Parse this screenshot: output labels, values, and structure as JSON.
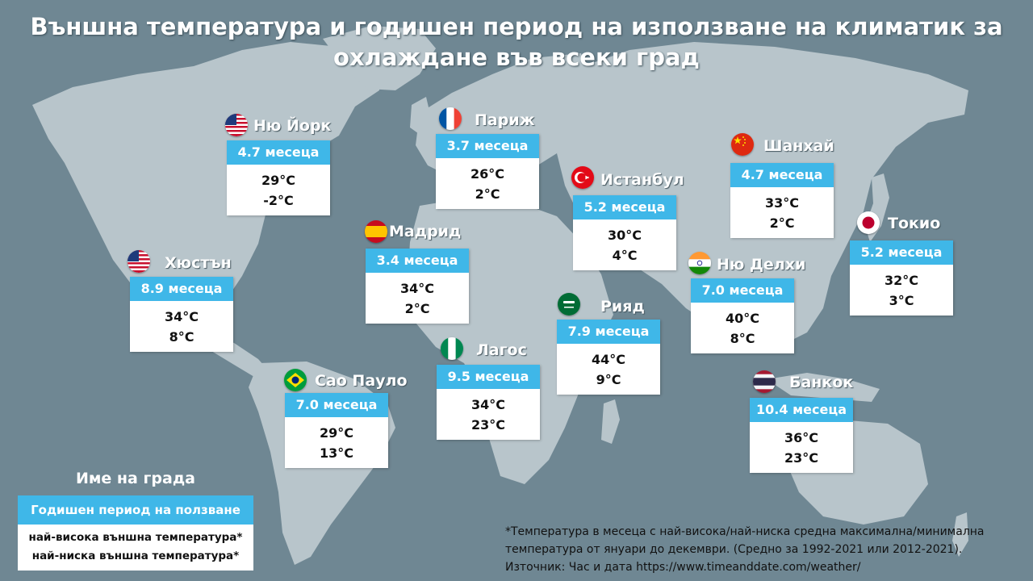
{
  "title_line1": "Външна температура и годишен период на използване на климатик за",
  "title_line2": "охлаждане във всеки град",
  "colors": {
    "background": "#6f8793",
    "land": "#b8c5cb",
    "accent": "#3fb7e8",
    "card": "#ffffff"
  },
  "cities": [
    {
      "name": "Ню Йорк",
      "period": "4.7 месеца",
      "high": "29°C",
      "low": "-2°C",
      "flag": "us"
    },
    {
      "name": "Париж",
      "period": "3.7 месеца",
      "high": "26°C",
      "low": "2°C",
      "flag": "fr"
    },
    {
      "name": "Шанхай",
      "period": "4.7 месеца",
      "high": "33°C",
      "low": "2°C",
      "flag": "cn"
    },
    {
      "name": "Истанбул",
      "period": "5.2 месеца",
      "high": "30°C",
      "low": "4°C",
      "flag": "tr"
    },
    {
      "name": "Токио",
      "period": "5.2 месеца",
      "high": "32°C",
      "low": "3°C",
      "flag": "jp"
    },
    {
      "name": "Мадрид",
      "period": "3.4 месеца",
      "high": "34°C",
      "low": "2°C",
      "flag": "es"
    },
    {
      "name": "Хюстън",
      "period": "8.9 месеца",
      "high": "34°C",
      "low": "8°C",
      "flag": "us"
    },
    {
      "name": "Ню Делхи",
      "period": "7.0 месеца",
      "high": "40°C",
      "low": "8°C",
      "flag": "in"
    },
    {
      "name": "Рияд",
      "period": "7.9 месеца",
      "high": "44°C",
      "low": "9°C",
      "flag": "sa"
    },
    {
      "name": "Лагос",
      "period": "9.5 месеца",
      "high": "34°C",
      "low": "23°C",
      "flag": "ng"
    },
    {
      "name": "Сао Пауло",
      "period": "7.0 месеца",
      "high": "29°C",
      "low": "13°C",
      "flag": "br"
    },
    {
      "name": "Банкок",
      "period": "10.4 месеца",
      "high": "36°C",
      "low": "23°C",
      "flag": "th"
    }
  ],
  "legend": {
    "city_label": "Име на града",
    "period_label": "Годишен период на ползване",
    "high_label": "най-висока външна температура*",
    "low_label": "най-ниска външна температура*"
  },
  "footnote": {
    "line1": "*Температура в месеца с най-висока/най-ниска средна максимална/минимална",
    "line2": "температура от януари до декември. (Средно за 1992-2021 или 2012-2021).",
    "line3": "Източник: Час и дата https://www.timeanddate.com/weather/"
  }
}
